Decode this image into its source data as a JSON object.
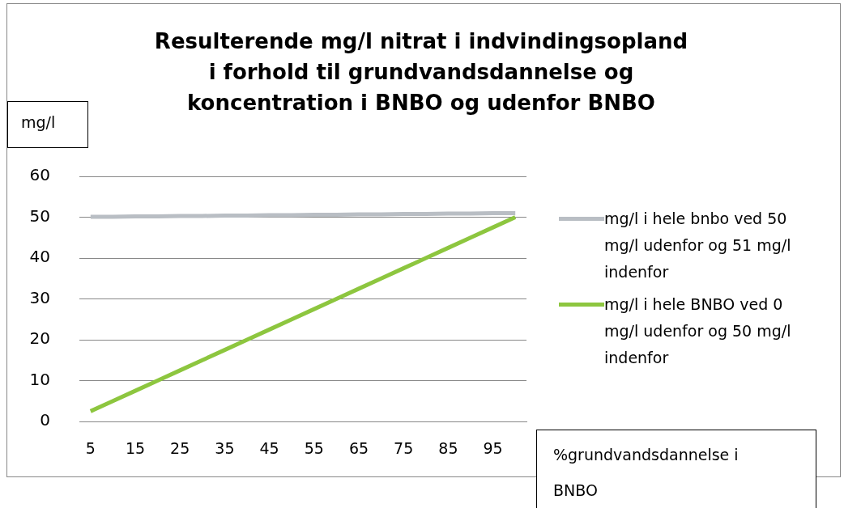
{
  "chart_data": {
    "type": "line",
    "title": "Resulterende mg/l nitrat i indvindingsopland i forhold til grundvandsdannelse og koncentration i BNBO og udenfor BNBO",
    "ylabel": "mg/l",
    "xlabel": "%grundvandsdannelse i BNBO",
    "categories": [
      "5",
      null,
      "15",
      null,
      "25",
      null,
      "35",
      null,
      "45",
      null,
      "55",
      null,
      "65",
      null,
      "75",
      null,
      "85",
      null,
      "95",
      null
    ],
    "series": [
      {
        "name": "mg/l i hele bnbo ved 50 mg/l udenfor og 51 mg/l indenfor",
        "color": "#b9bec4",
        "values": [
          50.1,
          50.1,
          50.2,
          50.2,
          50.3,
          50.3,
          50.4,
          50.4,
          50.5,
          50.5,
          50.6,
          50.6,
          50.7,
          50.7,
          50.8,
          50.8,
          50.9,
          50.9,
          51,
          51
        ]
      },
      {
        "name": "mg/l i hele BNBO ved 0 mg/l udenfor og 50 mg/l indenfor",
        "color": "#8dc63f",
        "values": [
          2.5,
          5,
          7.5,
          10,
          12.5,
          15,
          17.5,
          20,
          22.5,
          25,
          27.5,
          30,
          32.5,
          35,
          37.5,
          40,
          42.5,
          45,
          47.5,
          50
        ]
      }
    ],
    "ylim": [
      0,
      60
    ],
    "yticks": [
      0,
      10,
      20,
      30,
      40,
      50,
      60
    ],
    "grid": "y",
    "legend": "right",
    "marker": "none",
    "line_style": "solid"
  }
}
